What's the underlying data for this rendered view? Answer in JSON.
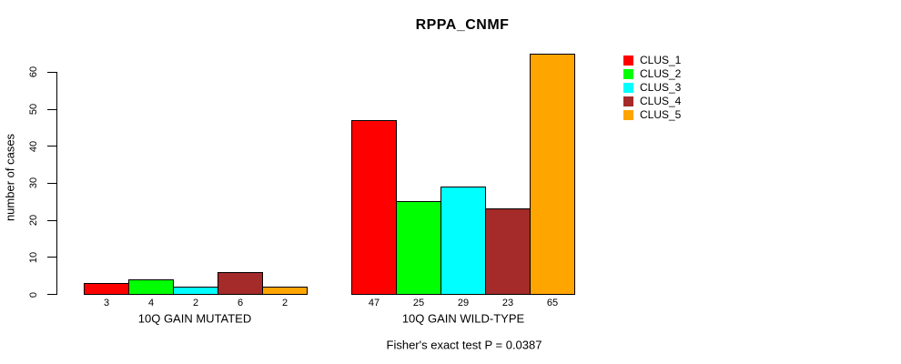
{
  "title": "RPPA_CNMF",
  "ylabel": "number of cases",
  "caption": "Fisher's exact test P = 0.0387",
  "chart_data": {
    "type": "bar",
    "groups": [
      "10Q GAIN MUTATED",
      "10Q GAIN WILD-TYPE"
    ],
    "series": [
      {
        "name": "CLUS_1",
        "color": "#ff0000",
        "values": [
          3,
          47
        ]
      },
      {
        "name": "CLUS_2",
        "color": "#00ff00",
        "values": [
          4,
          25
        ]
      },
      {
        "name": "CLUS_3",
        "color": "#00ffff",
        "values": [
          2,
          29
        ]
      },
      {
        "name": "CLUS_4",
        "color": "#a52a2a",
        "values": [
          6,
          23
        ]
      },
      {
        "name": "CLUS_5",
        "color": "#ffa500",
        "values": [
          2,
          65
        ]
      }
    ],
    "bar_value_labels": [
      [
        "3",
        "4",
        "2",
        "6",
        "2"
      ],
      [
        "47",
        "25",
        "29",
        "23",
        "65"
      ]
    ],
    "yticks": [
      0,
      10,
      20,
      30,
      40,
      50,
      60
    ],
    "ylim": [
      0,
      65
    ],
    "xlabel": "",
    "ylabel": "number of cases",
    "grid": false,
    "legend_position": "right",
    "legend_entries": [
      "CLUS_1",
      "CLUS_2",
      "CLUS_3",
      "CLUS_4",
      "CLUS_5"
    ],
    "axis_color": "#000000",
    "background_color": "#ffffff"
  }
}
